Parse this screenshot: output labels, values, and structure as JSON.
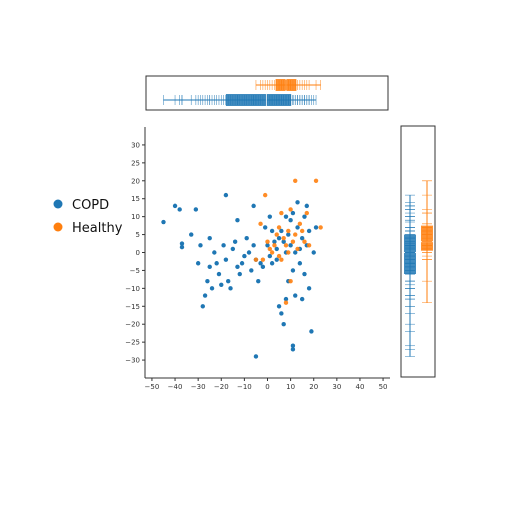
{
  "chart_data": {
    "type": "scatter",
    "title": "",
    "xlabel": "",
    "ylabel": "",
    "xlim": [
      -53,
      53
    ],
    "ylim": [
      -35,
      35
    ],
    "xticks": [
      -50,
      -40,
      -30,
      -20,
      -10,
      0,
      10,
      20,
      30,
      40,
      50
    ],
    "yticks": [
      -30,
      -25,
      -20,
      -15,
      -10,
      -5,
      0,
      5,
      10,
      15,
      20,
      25,
      30
    ],
    "grid": false,
    "legend_position": "left",
    "marginal": "box-rug",
    "series": [
      {
        "name": "COPD",
        "color": "#1f77b4",
        "points": [
          [
            -45,
            8.5
          ],
          [
            -40,
            13
          ],
          [
            -38,
            12
          ],
          [
            -37,
            1.5
          ],
          [
            -37,
            2.5
          ],
          [
            -33,
            5
          ],
          [
            -31,
            12
          ],
          [
            -30,
            -3
          ],
          [
            -29,
            2
          ],
          [
            -28,
            -15
          ],
          [
            -27,
            -12
          ],
          [
            -26,
            -8
          ],
          [
            -25,
            4
          ],
          [
            -25,
            -4
          ],
          [
            -24,
            -10
          ],
          [
            -23,
            0
          ],
          [
            -22,
            -3
          ],
          [
            -21,
            -6
          ],
          [
            -20,
            -9
          ],
          [
            -19,
            2
          ],
          [
            -18,
            16
          ],
          [
            -18,
            -2
          ],
          [
            -17,
            -8
          ],
          [
            -16,
            -10
          ],
          [
            -15,
            1
          ],
          [
            -14,
            3
          ],
          [
            -13,
            -4
          ],
          [
            -13,
            9
          ],
          [
            -12,
            -6
          ],
          [
            -11,
            -3
          ],
          [
            -10,
            -1
          ],
          [
            -9,
            4
          ],
          [
            -8,
            0
          ],
          [
            -7,
            -5
          ],
          [
            -6,
            2
          ],
          [
            -6,
            13
          ],
          [
            -5,
            -2
          ],
          [
            -5,
            -29
          ],
          [
            -4,
            -8
          ],
          [
            -3,
            -3
          ],
          [
            -2,
            -4
          ],
          [
            -1,
            7
          ],
          [
            0,
            2
          ],
          [
            1,
            -1
          ],
          [
            1,
            10
          ],
          [
            2,
            6
          ],
          [
            2,
            -3
          ],
          [
            3,
            3
          ],
          [
            4,
            -2
          ],
          [
            4,
            1
          ],
          [
            5,
            4
          ],
          [
            5,
            -15
          ],
          [
            6,
            6
          ],
          [
            6,
            -17
          ],
          [
            7,
            3
          ],
          [
            7,
            -20
          ],
          [
            8,
            0
          ],
          [
            8,
            10
          ],
          [
            8,
            -13
          ],
          [
            9,
            5
          ],
          [
            9,
            -8
          ],
          [
            10,
            9
          ],
          [
            10,
            2
          ],
          [
            11,
            -5
          ],
          [
            11,
            11
          ],
          [
            11,
            -26
          ],
          [
            11,
            -27
          ],
          [
            12,
            0
          ],
          [
            12,
            -12
          ],
          [
            13,
            14
          ],
          [
            13,
            7
          ],
          [
            14,
            -3
          ],
          [
            14,
            1
          ],
          [
            15,
            4
          ],
          [
            15,
            -13
          ],
          [
            16,
            10
          ],
          [
            16,
            -6
          ],
          [
            17,
            13
          ],
          [
            17,
            2
          ],
          [
            18,
            -10
          ],
          [
            18,
            6
          ],
          [
            19,
            -22
          ],
          [
            20,
            0
          ],
          [
            21,
            7
          ]
        ]
      },
      {
        "name": "Healthy",
        "color": "#ff7f0e",
        "points": [
          [
            -2,
            -2
          ],
          [
            -1,
            16
          ],
          [
            0,
            3
          ],
          [
            1,
            1
          ],
          [
            2,
            0
          ],
          [
            3,
            2
          ],
          [
            4,
            5
          ],
          [
            5,
            7
          ],
          [
            5,
            -1
          ],
          [
            6,
            11
          ],
          [
            6,
            -2
          ],
          [
            7,
            4
          ],
          [
            8,
            2
          ],
          [
            8,
            -14
          ],
          [
            9,
            6
          ],
          [
            9,
            0
          ],
          [
            10,
            12
          ],
          [
            10,
            -8
          ],
          [
            11,
            3
          ],
          [
            12,
            5
          ],
          [
            12,
            20
          ],
          [
            13,
            1
          ],
          [
            14,
            8
          ],
          [
            15,
            6
          ],
          [
            16,
            3
          ],
          [
            17,
            11
          ],
          [
            18,
            2
          ],
          [
            21,
            20
          ],
          [
            23,
            7
          ],
          [
            -3,
            8
          ],
          [
            -5,
            -2
          ]
        ]
      }
    ]
  }
}
